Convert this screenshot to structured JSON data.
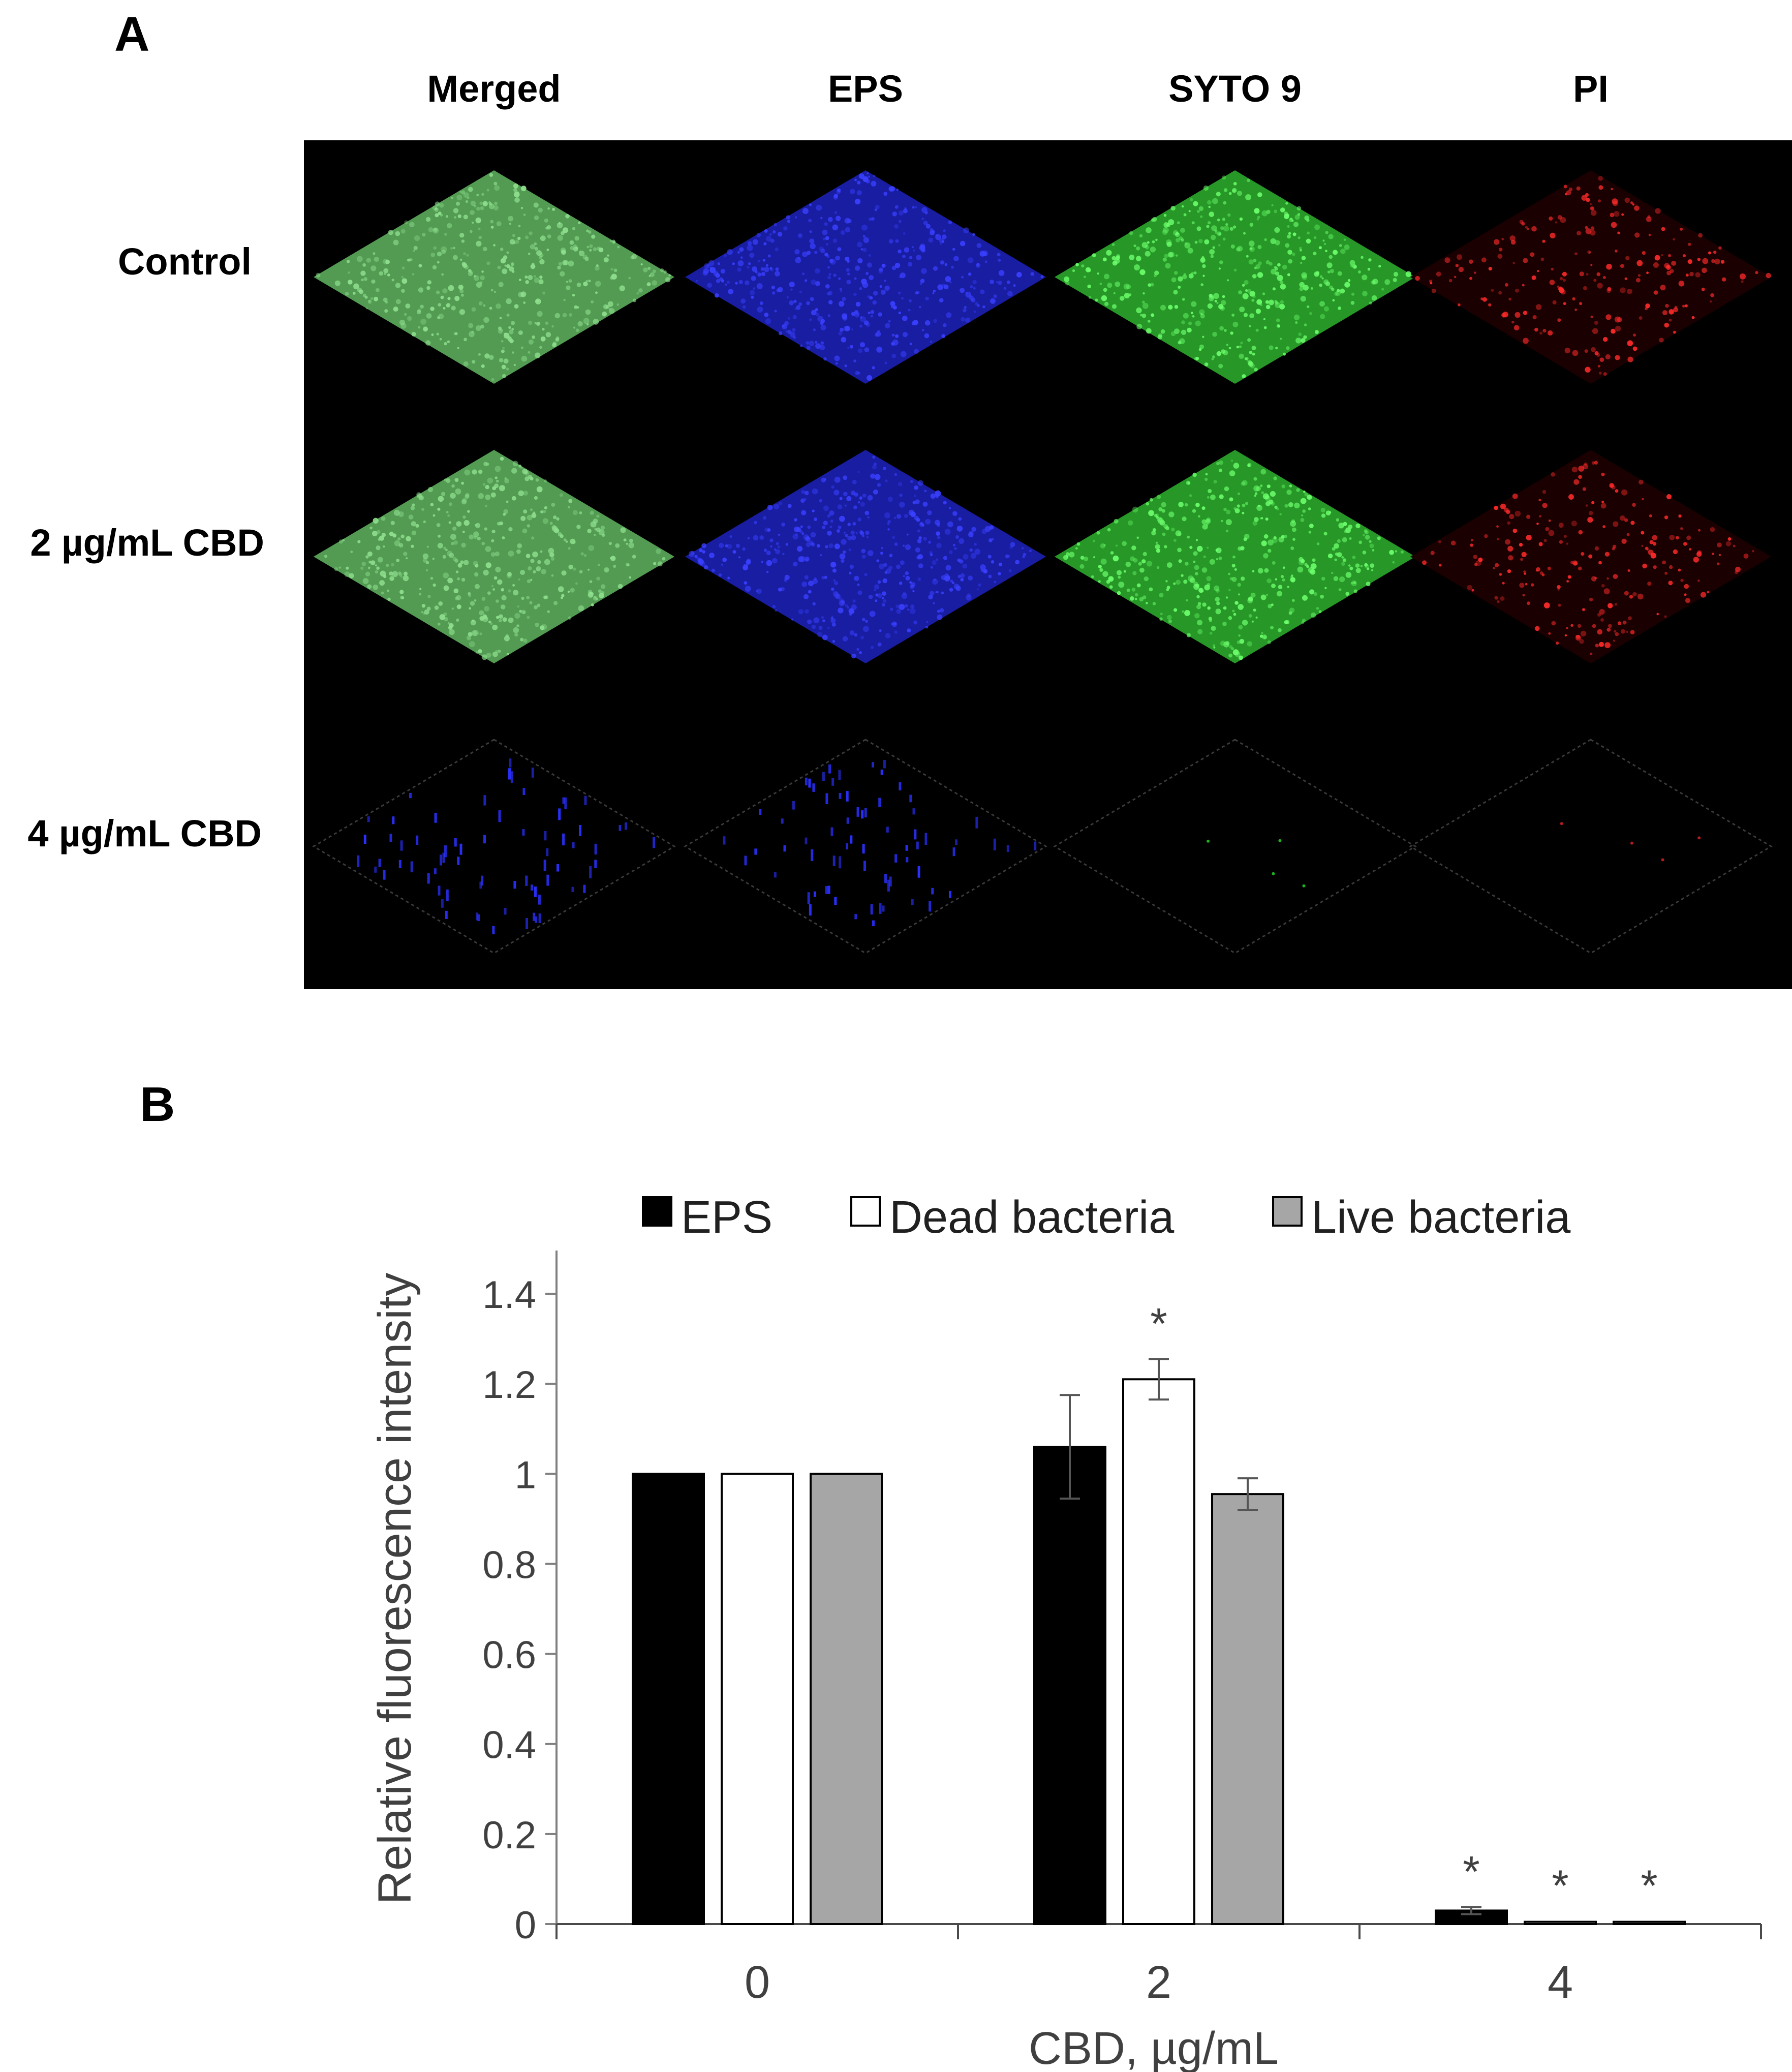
{
  "panel_a": {
    "letter": "A",
    "columns": [
      "Merged",
      "EPS",
      "SYTO 9",
      "PI"
    ],
    "rows": [
      "Control",
      "2 µg/mL CBD",
      "4 µg/mL CBD"
    ],
    "colors": {
      "merged": "#5aa85a",
      "eps": "#1a1fb0",
      "syto9": "#2aa52a",
      "pi": "#c01818",
      "background": "#000000"
    }
  },
  "panel_b": {
    "letter": "B"
  },
  "chart_data": {
    "type": "bar",
    "categories": [
      "0",
      "2",
      "4"
    ],
    "xlabel": "CBD, µg/mL",
    "ylabel": "Relative fluorescence intensity",
    "ylim": [
      0,
      1.4
    ],
    "yticks": [
      "0",
      "0.2",
      "0.4",
      "0.6",
      "0.8",
      "1",
      "1.2",
      "1.4"
    ],
    "legend_position": "top",
    "grid": false,
    "series": [
      {
        "name": "EPS",
        "color": "#000000",
        "values": [
          1.0,
          1.06,
          0.03
        ],
        "errors": [
          0.0,
          0.115,
          0.008
        ],
        "significant": [
          false,
          false,
          true
        ]
      },
      {
        "name": "Dead bacteria",
        "color": "#ffffff",
        "values": [
          1.0,
          1.21,
          0.005
        ],
        "errors": [
          0.0,
          0.045,
          0.002
        ],
        "significant": [
          false,
          true,
          true
        ]
      },
      {
        "name": "Live bacteria",
        "color": "#a6a6a6",
        "values": [
          1.0,
          0.955,
          0.005
        ],
        "errors": [
          0.0,
          0.035,
          0.002
        ],
        "significant": [
          false,
          false,
          true
        ]
      }
    ],
    "significance_marker": "*"
  }
}
